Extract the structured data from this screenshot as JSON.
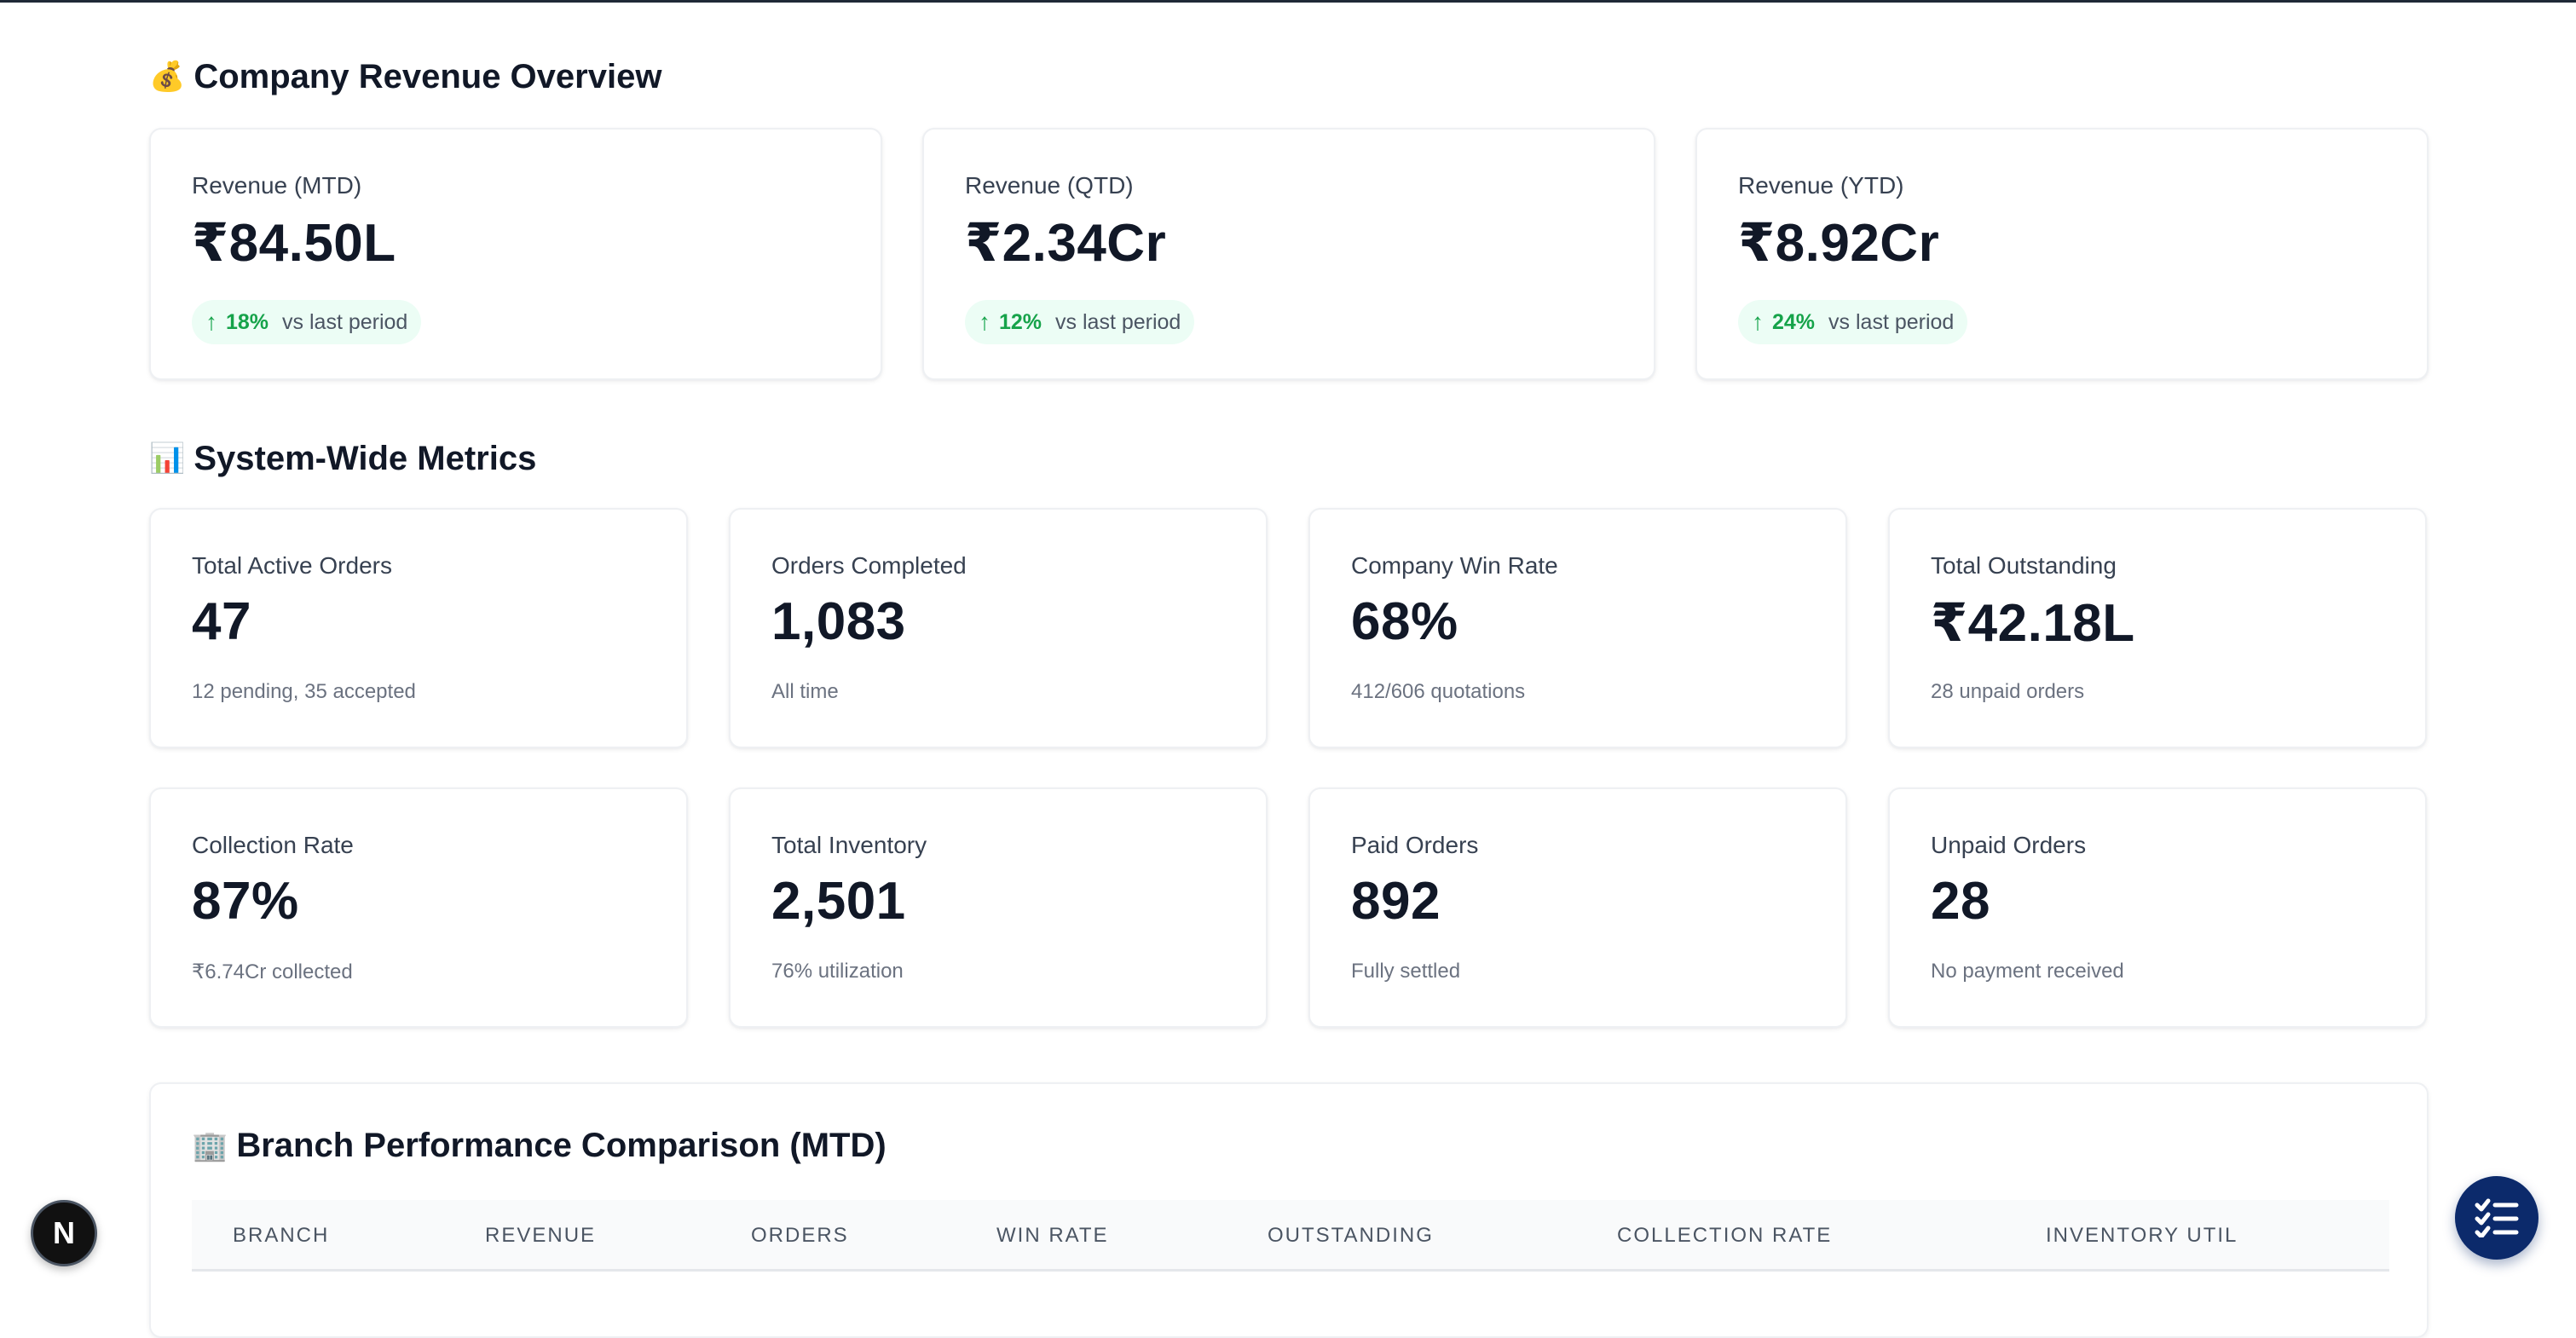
{
  "revenue_overview": {
    "emoji": "💰",
    "title": "Company Revenue Overview",
    "vs_text": "vs last period",
    "cards": [
      {
        "label": "Revenue (MTD)",
        "value": "₹84.50L",
        "change": "18%"
      },
      {
        "label": "Revenue (QTD)",
        "value": "₹2.34Cr",
        "change": "12%"
      },
      {
        "label": "Revenue (YTD)",
        "value": "₹8.92Cr",
        "change": "24%"
      }
    ]
  },
  "system_metrics": {
    "emoji": "📊",
    "title": "System-Wide Metrics",
    "cards": [
      {
        "label": "Total Active Orders",
        "value": "47",
        "sub": "12 pending, 35 accepted"
      },
      {
        "label": "Orders Completed",
        "value": "1,083",
        "sub": "All time"
      },
      {
        "label": "Company Win Rate",
        "value": "68%",
        "sub": "412/606 quotations"
      },
      {
        "label": "Total Outstanding",
        "value": "₹42.18L",
        "sub": "28 unpaid orders"
      },
      {
        "label": "Collection Rate",
        "value": "87%",
        "sub": "₹6.74Cr collected"
      },
      {
        "label": "Total Inventory",
        "value": "2,501",
        "sub": "76% utilization"
      },
      {
        "label": "Paid Orders",
        "value": "892",
        "sub": "Fully settled"
      },
      {
        "label": "Unpaid Orders",
        "value": "28",
        "sub": "No payment received"
      }
    ]
  },
  "branch_performance": {
    "emoji": "🏢",
    "title": "Branch Performance Comparison (MTD)",
    "columns": [
      "BRANCH",
      "REVENUE",
      "ORDERS",
      "WIN RATE",
      "OUTSTANDING",
      "COLLECTION RATE",
      "INVENTORY UTIL"
    ]
  },
  "fab_left": {
    "letter": "N",
    "icon": "nextjs-logo-icon"
  },
  "fab_right": {
    "icon": "checklist-icon"
  },
  "colors": {
    "accent_green": "#16a34a",
    "badge_bg": "#ecfdf5",
    "fab_blue": "#0c2a6b"
  }
}
